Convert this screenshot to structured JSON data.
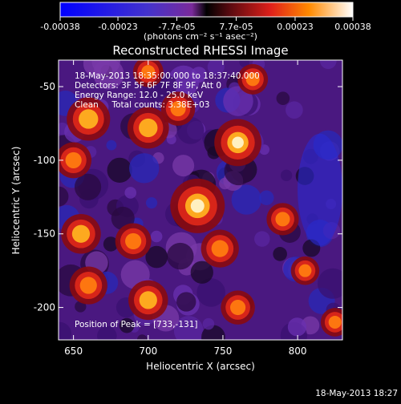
{
  "chart_data": {
    "type": "heatmap",
    "title": "Reconstructed RHESSI Image",
    "xlabel": "Heliocentric X (arcsec)",
    "ylabel": "Heliocentric Y (arcsec)",
    "xlim": [
      640,
      830
    ],
    "ylim": [
      -222,
      -32
    ],
    "xticks": [
      650,
      700,
      750,
      800
    ],
    "yticks": [
      -50,
      -100,
      -150,
      -200
    ],
    "colorbar": {
      "min": -0.00038,
      "max": 0.00038,
      "tick_values": [
        -0.00038,
        -0.00023,
        -7.7e-05,
        7.7e-05,
        0.00023,
        0.00038
      ],
      "tick_labels": [
        "-0.00038",
        "-0.00023",
        "-7.7e-05",
        "7.7e-05",
        "0.00023",
        "0.00038"
      ],
      "unit_label": "(photons cm⁻² s⁻¹ asec⁻²)"
    },
    "annotations": [
      "18-May-2013 18:35:00.000 to 18:37:40.000",
      "Detectors: 3F 5F 6F 7F 8F 9F, Att 0",
      "Energy Range: 12.0 - 25.0 keV",
      "Clean     Total counts: 3.38E+03"
    ],
    "peak_label": "Position of Peak = [733,-131]",
    "sources": [
      {
        "x": 733,
        "y": -131,
        "value": 0.00038
      },
      {
        "x": 760,
        "y": -88,
        "value": 0.0003
      },
      {
        "x": 660,
        "y": -72,
        "value": 0.00026
      },
      {
        "x": 700,
        "y": -78,
        "value": 0.00024
      },
      {
        "x": 650,
        "y": -100,
        "value": 0.00018
      },
      {
        "x": 720,
        "y": -65,
        "value": 0.00016
      },
      {
        "x": 748,
        "y": -160,
        "value": 0.0002
      },
      {
        "x": 655,
        "y": -150,
        "value": 0.00022
      },
      {
        "x": 690,
        "y": -155,
        "value": 0.00018
      },
      {
        "x": 660,
        "y": -185,
        "value": 0.0002
      },
      {
        "x": 700,
        "y": -195,
        "value": 0.00022
      },
      {
        "x": 760,
        "y": -200,
        "value": 0.00016
      },
      {
        "x": 700,
        "y": -40,
        "value": 0.00012
      },
      {
        "x": 770,
        "y": -45,
        "value": 0.00012
      },
      {
        "x": 790,
        "y": -140,
        "value": 0.00014
      },
      {
        "x": 805,
        "y": -175,
        "value": 0.0001
      },
      {
        "x": 825,
        "y": -210,
        "value": 0.0001
      }
    ]
  },
  "footer": {
    "timestamp": "18-May-2013 18:27"
  }
}
